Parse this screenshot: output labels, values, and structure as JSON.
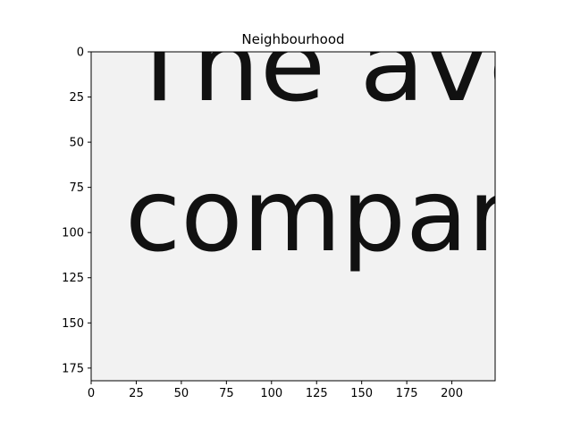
{
  "chart_data": {
    "type": "heatmap",
    "title": "Neighbourhood",
    "xlabel": "",
    "ylabel": "",
    "xlim": [
      0,
      224
    ],
    "ylim": [
      182,
      0
    ],
    "x_ticks": [
      0,
      25,
      50,
      75,
      100,
      125,
      150,
      175,
      200
    ],
    "y_ticks": [
      0,
      25,
      50,
      75,
      100,
      125,
      150,
      175
    ],
    "colormap": "gray",
    "grid": false,
    "image_content": {
      "line1": "The avc",
      "line2": "compar"
    }
  }
}
